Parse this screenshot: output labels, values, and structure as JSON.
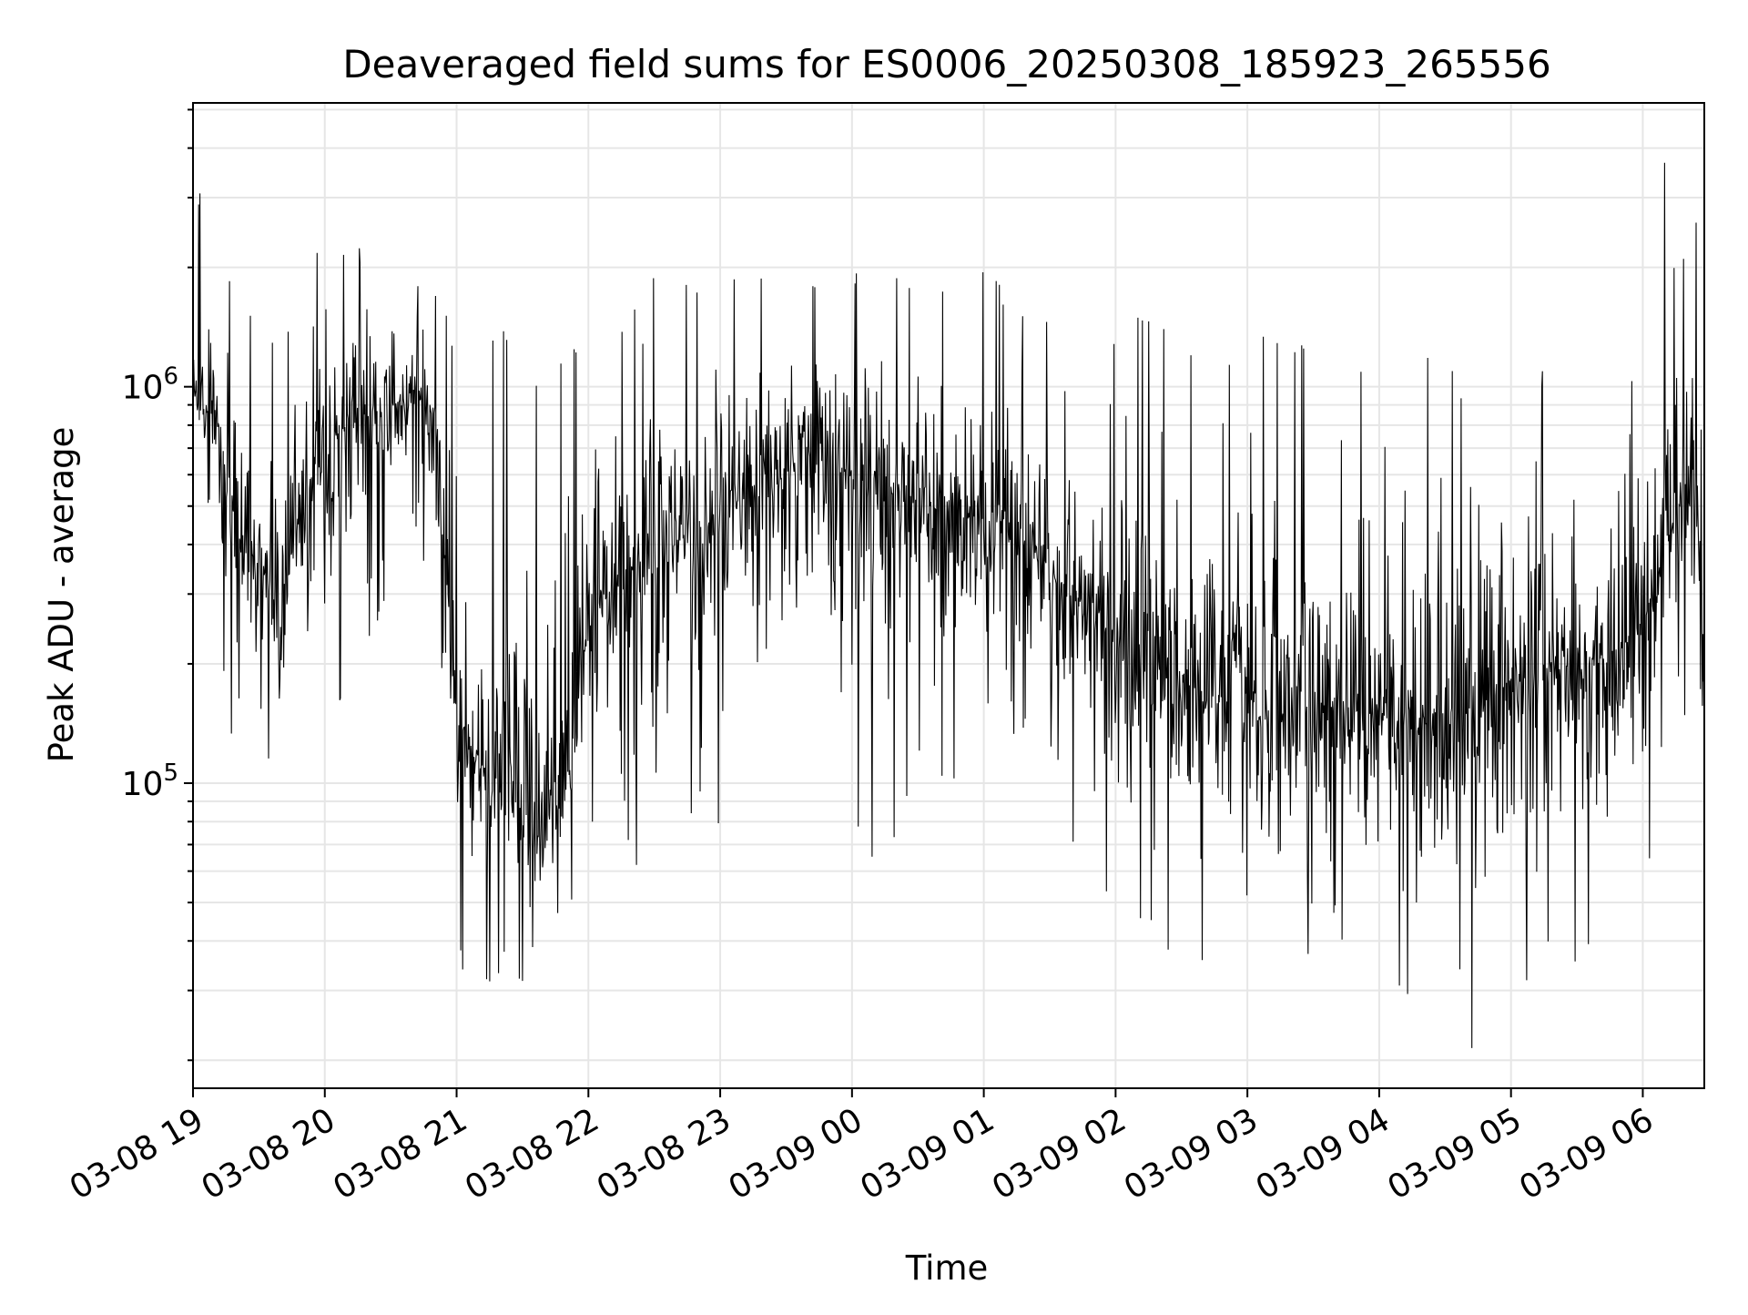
{
  "chart_data": {
    "type": "line",
    "title": "Deaveraged field sums for ES0006_20250308_185923_265556",
    "xlabel": "Time",
    "ylabel": "Peak ADU - average",
    "yscale": "log",
    "ylim": [
      17000,
      5200000
    ],
    "xlim": [
      "03-08 19:00",
      "03-09 06:28"
    ],
    "grid": true,
    "line_color": "#000000",
    "y_tick_labels": [
      {
        "base": "10",
        "exp": "5",
        "value": 100000
      },
      {
        "base": "10",
        "exp": "6",
        "value": 1000000
      }
    ],
    "x_tick_labels": [
      "03-08 19",
      "03-08 20",
      "03-08 21",
      "03-08 22",
      "03-08 23",
      "03-09 00",
      "03-09 01",
      "03-09 02",
      "03-09 03",
      "03-09 04",
      "03-09 05",
      "03-09 06"
    ],
    "series": [
      {
        "x": [
          "03-08 19:00",
          "03-08 19:10",
          "03-08 19:20",
          "03-08 19:30",
          "03-08 19:40",
          "03-08 19:50",
          "03-08 20:00",
          "03-08 20:10",
          "03-08 20:20",
          "03-08 20:30",
          "03-08 20:40",
          "03-08 20:50",
          "03-08 21:00",
          "03-08 21:10",
          "03-08 21:20",
          "03-08 21:30",
          "03-08 21:40",
          "03-08 21:50",
          "03-08 22:00",
          "03-08 22:10",
          "03-08 22:20",
          "03-08 22:30",
          "03-08 22:40",
          "03-08 22:50",
          "03-08 23:00",
          "03-08 23:10",
          "03-08 23:20",
          "03-08 23:30",
          "03-08 23:40",
          "03-08 23:50",
          "03-09 00:00",
          "03-09 00:10",
          "03-09 00:20",
          "03-09 00:30",
          "03-09 00:40",
          "03-09 00:50",
          "03-09 01:00",
          "03-09 01:10",
          "03-09 01:20",
          "03-09 01:30",
          "03-09 01:40",
          "03-09 01:50",
          "03-09 02:00",
          "03-09 02:10",
          "03-09 02:20",
          "03-09 02:30",
          "03-09 02:40",
          "03-09 02:50",
          "03-09 03:00",
          "03-09 03:10",
          "03-09 03:20",
          "03-09 03:30",
          "03-09 03:40",
          "03-09 03:50",
          "03-09 04:00",
          "03-09 04:10",
          "03-09 04:20",
          "03-09 04:30",
          "03-09 04:40",
          "03-09 04:50",
          "03-09 05:00",
          "03-09 05:10",
          "03-09 05:20",
          "03-09 05:30",
          "03-09 05:40",
          "03-09 05:50",
          "03-09 06:00",
          "03-09 06:10",
          "03-09 06:20",
          "03-09 06:28"
        ],
        "center": [
          1000000,
          700000,
          450000,
          350000,
          300000,
          500000,
          700000,
          800000,
          850000,
          900000,
          950000,
          850000,
          150000,
          110000,
          90000,
          80000,
          70000,
          100000,
          250000,
          300000,
          350000,
          380000,
          400000,
          420000,
          500000,
          550000,
          600000,
          620000,
          650000,
          620000,
          600000,
          580000,
          550000,
          520000,
          500000,
          480000,
          450000,
          420000,
          380000,
          340000,
          300000,
          260000,
          220000,
          200000,
          190000,
          180000,
          170000,
          160000,
          160000,
          150000,
          150000,
          160000,
          160000,
          150000,
          150000,
          140000,
          140000,
          150000,
          150000,
          160000,
          170000,
          180000,
          190000,
          200000,
          210000,
          220000,
          250000,
          400000,
          600000,
          300000
        ],
        "high": [
          3500000,
          2400000,
          1900000,
          1500000,
          1300000,
          1600000,
          2600000,
          2200000,
          2300000,
          2500000,
          2000000,
          1900000,
          1500000,
          1300000,
          1500000,
          1100000,
          1000000,
          1200000,
          1400000,
          1300000,
          1600000,
          1900000,
          2000000,
          1800000,
          2800000,
          2500000,
          2000000,
          2000000,
          1900000,
          1800000,
          2000000,
          2100000,
          1900000,
          1700000,
          1800000,
          1900000,
          2100000,
          1700000,
          1600000,
          1500000,
          1400000,
          1400000,
          1400000,
          1500000,
          1500000,
          1300000,
          1200000,
          1200000,
          1600000,
          1400000,
          1300000,
          1400000,
          1200000,
          1100000,
          1600000,
          1200000,
          1300000,
          1100000,
          1200000,
          1300000,
          1100000,
          1200000,
          1000000,
          1100000,
          1400000,
          1300000,
          1800000,
          3800000,
          4100000,
          2000000
        ],
        "low": [
          480000,
          300000,
          95000,
          90000,
          70000,
          130000,
          100000,
          200000,
          220000,
          300000,
          380000,
          160000,
          35000,
          29000,
          33000,
          31000,
          30000,
          45000,
          55000,
          50000,
          60000,
          40000,
          60000,
          90000,
          70000,
          120000,
          130000,
          100000,
          80000,
          90000,
          65000,
          60000,
          70000,
          110000,
          100000,
          90000,
          95000,
          80000,
          75000,
          70000,
          65000,
          55000,
          50000,
          45000,
          40000,
          35000,
          33000,
          36000,
          32000,
          30000,
          38000,
          35000,
          34000,
          28000,
          27000,
          30000,
          23000,
          28000,
          20000,
          26000,
          30000,
          29000,
          35000,
          32000,
          40000,
          45000,
          60000,
          70000,
          100000,
          100000
        ]
      }
    ]
  }
}
